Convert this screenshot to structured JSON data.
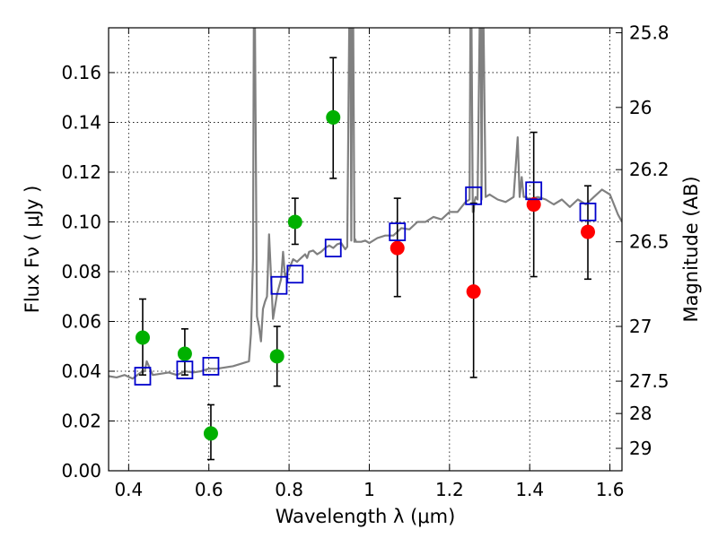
{
  "chart_data": {
    "type": "scatter",
    "xlabel": "Wavelength  λ (μm)",
    "ylabel": "Flux  Fν  ( μJy )",
    "y2label": "Magnitude (AB)",
    "xlim": [
      0.35,
      1.63
    ],
    "ylim": [
      0.0,
      0.178
    ],
    "grid": true,
    "x_ticks": [
      0.4,
      0.6,
      0.8,
      1.0,
      1.2,
      1.4,
      1.6
    ],
    "x_tick_labels": [
      "0.4",
      "0.6",
      "0.8",
      "1",
      "1.2",
      "1.4",
      "1.6"
    ],
    "y_ticks": [
      0.0,
      0.02,
      0.04,
      0.06,
      0.08,
      0.1,
      0.12,
      0.14,
      0.16
    ],
    "y_tick_labels": [
      "0.00",
      "0.02",
      "0.04",
      "0.06",
      "0.08",
      "0.10",
      "0.12",
      "0.14",
      "0.16"
    ],
    "y2_ticks": [
      {
        "label": "25.8",
        "flux": 0.176
      },
      {
        "label": "26",
        "flux": 0.146
      },
      {
        "label": "26.2",
        "flux": 0.121
      },
      {
        "label": "26.5",
        "flux": 0.092
      },
      {
        "label": "27",
        "flux": 0.058
      },
      {
        "label": "27.5",
        "flux": 0.036
      },
      {
        "label": "28",
        "flux": 0.023
      },
      {
        "label": "29",
        "flux": 0.009
      }
    ],
    "series": [
      {
        "name": "green points",
        "marker": "circle",
        "color": "#00b000",
        "points": [
          {
            "x": 0.435,
            "y": 0.0535,
            "err_lo": 0.0385,
            "err_hi": 0.069
          },
          {
            "x": 0.54,
            "y": 0.047,
            "err_lo": 0.0385,
            "err_hi": 0.057
          },
          {
            "x": 0.605,
            "y": 0.015,
            "err_lo": 0.0045,
            "err_hi": 0.0265
          },
          {
            "x": 0.77,
            "y": 0.046,
            "err_lo": 0.034,
            "err_hi": 0.058
          },
          {
            "x": 0.815,
            "y": 0.1,
            "err_lo": 0.091,
            "err_hi": 0.1095
          },
          {
            "x": 0.91,
            "y": 0.142,
            "err_lo": 0.1175,
            "err_hi": 0.166
          }
        ]
      },
      {
        "name": "red points",
        "marker": "circle",
        "color": "#ff0000",
        "points": [
          {
            "x": 1.07,
            "y": 0.0895,
            "err_lo": 0.07,
            "err_hi": 0.1095
          },
          {
            "x": 1.26,
            "y": 0.072,
            "err_lo": 0.0375,
            "err_hi": 0.1075
          },
          {
            "x": 1.41,
            "y": 0.107,
            "err_lo": 0.078,
            "err_hi": 0.136
          },
          {
            "x": 1.545,
            "y": 0.096,
            "err_lo": 0.077,
            "err_hi": 0.1145
          }
        ]
      },
      {
        "name": "model photometry",
        "marker": "open-square",
        "color": "#0000cc",
        "points": [
          {
            "x": 0.435,
            "y": 0.038
          },
          {
            "x": 0.54,
            "y": 0.0405
          },
          {
            "x": 0.605,
            "y": 0.042
          },
          {
            "x": 0.775,
            "y": 0.0745
          },
          {
            "x": 0.815,
            "y": 0.079
          },
          {
            "x": 0.91,
            "y": 0.0895
          },
          {
            "x": 1.07,
            "y": 0.096
          },
          {
            "x": 1.26,
            "y": 0.1105
          },
          {
            "x": 1.41,
            "y": 0.1125
          },
          {
            "x": 1.545,
            "y": 0.104
          }
        ]
      },
      {
        "name": "model spectrum",
        "type": "line",
        "color": "#808080",
        "x": [
          0.35,
          0.37,
          0.39,
          0.41,
          0.43,
          0.44,
          0.445,
          0.46,
          0.48,
          0.5,
          0.52,
          0.54,
          0.56,
          0.58,
          0.6,
          0.62,
          0.64,
          0.66,
          0.68,
          0.7,
          0.705,
          0.71,
          0.712,
          0.715,
          0.72,
          0.725,
          0.73,
          0.735,
          0.74,
          0.745,
          0.75,
          0.76,
          0.77,
          0.78,
          0.785,
          0.79,
          0.8,
          0.81,
          0.82,
          0.83,
          0.84,
          0.845,
          0.85,
          0.86,
          0.87,
          0.88,
          0.89,
          0.9,
          0.91,
          0.92,
          0.93,
          0.94,
          0.945,
          0.95,
          0.953,
          0.955,
          0.957,
          0.96,
          0.963,
          0.965,
          0.967,
          0.97,
          0.98,
          0.99,
          1.0,
          1.02,
          1.04,
          1.06,
          1.08,
          1.1,
          1.12,
          1.14,
          1.16,
          1.18,
          1.2,
          1.22,
          1.24,
          1.25,
          1.252,
          1.255,
          1.258,
          1.26,
          1.262,
          1.265,
          1.27,
          1.275,
          1.278,
          1.28,
          1.282,
          1.285,
          1.29,
          1.3,
          1.32,
          1.34,
          1.36,
          1.37,
          1.375,
          1.38,
          1.385,
          1.39,
          1.4,
          1.42,
          1.44,
          1.46,
          1.48,
          1.5,
          1.52,
          1.54,
          1.56,
          1.58,
          1.6,
          1.62,
          1.63
        ],
        "y": [
          0.038,
          0.0375,
          0.0385,
          0.037,
          0.0395,
          0.04,
          0.044,
          0.0385,
          0.039,
          0.0395,
          0.0385,
          0.04,
          0.0395,
          0.04,
          0.041,
          0.041,
          0.0415,
          0.042,
          0.043,
          0.044,
          0.055,
          0.085,
          0.178,
          0.178,
          0.062,
          0.058,
          0.052,
          0.065,
          0.068,
          0.07,
          0.095,
          0.061,
          0.071,
          0.077,
          0.088,
          0.078,
          0.081,
          0.085,
          0.084,
          0.0855,
          0.087,
          0.0855,
          0.088,
          0.0885,
          0.087,
          0.088,
          0.0895,
          0.0905,
          0.0895,
          0.091,
          0.0915,
          0.089,
          0.09,
          0.178,
          0.178,
          0.0925,
          0.178,
          0.178,
          0.092,
          0.093,
          0.092,
          0.092,
          0.092,
          0.0925,
          0.0915,
          0.0935,
          0.0945,
          0.0945,
          0.0975,
          0.097,
          0.1,
          0.1,
          0.102,
          0.101,
          0.104,
          0.104,
          0.108,
          0.109,
          0.178,
          0.178,
          0.104,
          0.104,
          0.108,
          0.11,
          0.109,
          0.178,
          0.178,
          0.109,
          0.178,
          0.178,
          0.11,
          0.111,
          0.109,
          0.108,
          0.11,
          0.134,
          0.11,
          0.118,
          0.11,
          0.11,
          0.109,
          0.11,
          0.109,
          0.107,
          0.109,
          0.106,
          0.109,
          0.107,
          0.11,
          0.113,
          0.111,
          0.103,
          0.1
        ]
      }
    ]
  }
}
